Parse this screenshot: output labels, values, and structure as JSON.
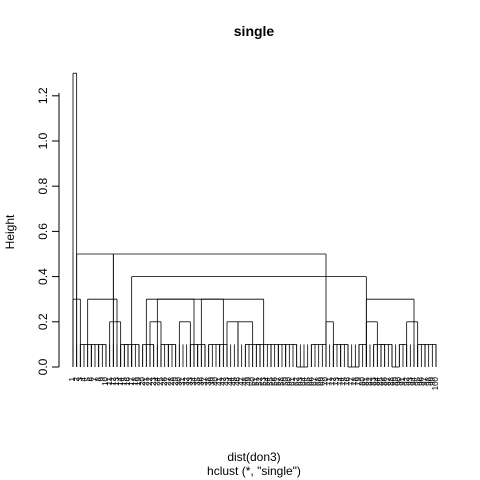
{
  "chart_data": {
    "type": "dendrogram",
    "title": "single",
    "ylabel": "Height",
    "xlabel": "dist(don3)",
    "sub": "hclust (*, \"single\")",
    "ylim": [
      0,
      1.3
    ],
    "y_ticks": [
      0.0,
      0.2,
      0.4,
      0.6,
      0.8,
      1.0,
      1.2
    ],
    "y_tick_labels": [
      "0.0",
      "0.2",
      "0.4",
      "0.6",
      "0.8",
      "1.0",
      "1.2"
    ],
    "n_leaves": 100,
    "leaf_labels": [
      "1",
      "2",
      "3",
      "4",
      "5",
      "6",
      "7",
      "8",
      "9",
      "10",
      "11",
      "12",
      "13",
      "14",
      "15",
      "16",
      "17",
      "18",
      "19",
      "20",
      "21",
      "22",
      "23",
      "24",
      "25",
      "26",
      "27",
      "28",
      "29",
      "30",
      "31",
      "32",
      "33",
      "34",
      "35",
      "36",
      "37",
      "38",
      "39",
      "40",
      "41",
      "42",
      "43",
      "44",
      "45",
      "46",
      "47",
      "48",
      "49",
      "50",
      "51",
      "52",
      "53",
      "54",
      "55",
      "56",
      "57",
      "58",
      "59",
      "60",
      "61",
      "62",
      "63",
      "64",
      "65",
      "66",
      "67",
      "68",
      "69",
      "70",
      "71",
      "72",
      "73",
      "74",
      "75",
      "76",
      "77",
      "78",
      "79",
      "80",
      "81",
      "82",
      "83",
      "84",
      "85",
      "86",
      "87",
      "88",
      "89",
      "90",
      "91",
      "92",
      "93",
      "94",
      "95",
      "96",
      "97",
      "98",
      "99",
      "100"
    ],
    "merges": [
      {
        "from": 0,
        "to": 1,
        "h": 1.3
      },
      {
        "from": 1,
        "to": 11,
        "h": 0.5
      },
      {
        "from": 11,
        "to": 69,
        "h": 0.5
      },
      {
        "from": 16,
        "to": 80,
        "h": 0.4
      },
      {
        "from": 80,
        "to": 93,
        "h": 0.3
      },
      {
        "from": 0,
        "to": 2,
        "h": 0.3
      },
      {
        "from": 4,
        "to": 12,
        "h": 0.3
      },
      {
        "from": 20,
        "to": 33,
        "h": 0.3
      },
      {
        "from": 23,
        "to": 41,
        "h": 0.3
      },
      {
        "from": 35,
        "to": 52,
        "h": 0.3
      },
      {
        "from": 2,
        "to": 5,
        "h": 0.1
      },
      {
        "from": 5,
        "to": 7,
        "h": 0.1
      },
      {
        "from": 7,
        "to": 9,
        "h": 0.1
      },
      {
        "from": 10,
        "to": 13,
        "h": 0.2
      },
      {
        "from": 13,
        "to": 16,
        "h": 0.1
      },
      {
        "from": 14,
        "to": 15,
        "h": 0.1
      },
      {
        "from": 16,
        "to": 18,
        "h": 0.1
      },
      {
        "from": 19,
        "to": 22,
        "h": 0.1
      },
      {
        "from": 21,
        "to": 24,
        "h": 0.2
      },
      {
        "from": 24,
        "to": 26,
        "h": 0.1
      },
      {
        "from": 26,
        "to": 28,
        "h": 0.1
      },
      {
        "from": 29,
        "to": 32,
        "h": 0.2
      },
      {
        "from": 32,
        "to": 34,
        "h": 0.1
      },
      {
        "from": 34,
        "to": 36,
        "h": 0.1
      },
      {
        "from": 37,
        "to": 40,
        "h": 0.1
      },
      {
        "from": 40,
        "to": 42,
        "h": 0.1
      },
      {
        "from": 42,
        "to": 45,
        "h": 0.2
      },
      {
        "from": 45,
        "to": 49,
        "h": 0.2
      },
      {
        "from": 47,
        "to": 51,
        "h": 0.1
      },
      {
        "from": 50,
        "to": 54,
        "h": 0.1
      },
      {
        "from": 54,
        "to": 56,
        "h": 0.1
      },
      {
        "from": 56,
        "to": 58,
        "h": 0.1
      },
      {
        "from": 58,
        "to": 61,
        "h": 0.1
      },
      {
        "from": 61,
        "to": 64,
        "h": 0.0
      },
      {
        "from": 65,
        "to": 69,
        "h": 0.1
      },
      {
        "from": 69,
        "to": 71,
        "h": 0.2
      },
      {
        "from": 71,
        "to": 73,
        "h": 0.1
      },
      {
        "from": 73,
        "to": 75,
        "h": 0.1
      },
      {
        "from": 75,
        "to": 78,
        "h": 0.0
      },
      {
        "from": 78,
        "to": 80,
        "h": 0.1
      },
      {
        "from": 80,
        "to": 83,
        "h": 0.2
      },
      {
        "from": 82,
        "to": 85,
        "h": 0.1
      },
      {
        "from": 84,
        "to": 87,
        "h": 0.1
      },
      {
        "from": 87,
        "to": 89,
        "h": 0.0
      },
      {
        "from": 89,
        "to": 91,
        "h": 0.1
      },
      {
        "from": 91,
        "to": 94,
        "h": 0.2
      },
      {
        "from": 94,
        "to": 96,
        "h": 0.1
      },
      {
        "from": 96,
        "to": 99,
        "h": 0.1
      }
    ]
  }
}
